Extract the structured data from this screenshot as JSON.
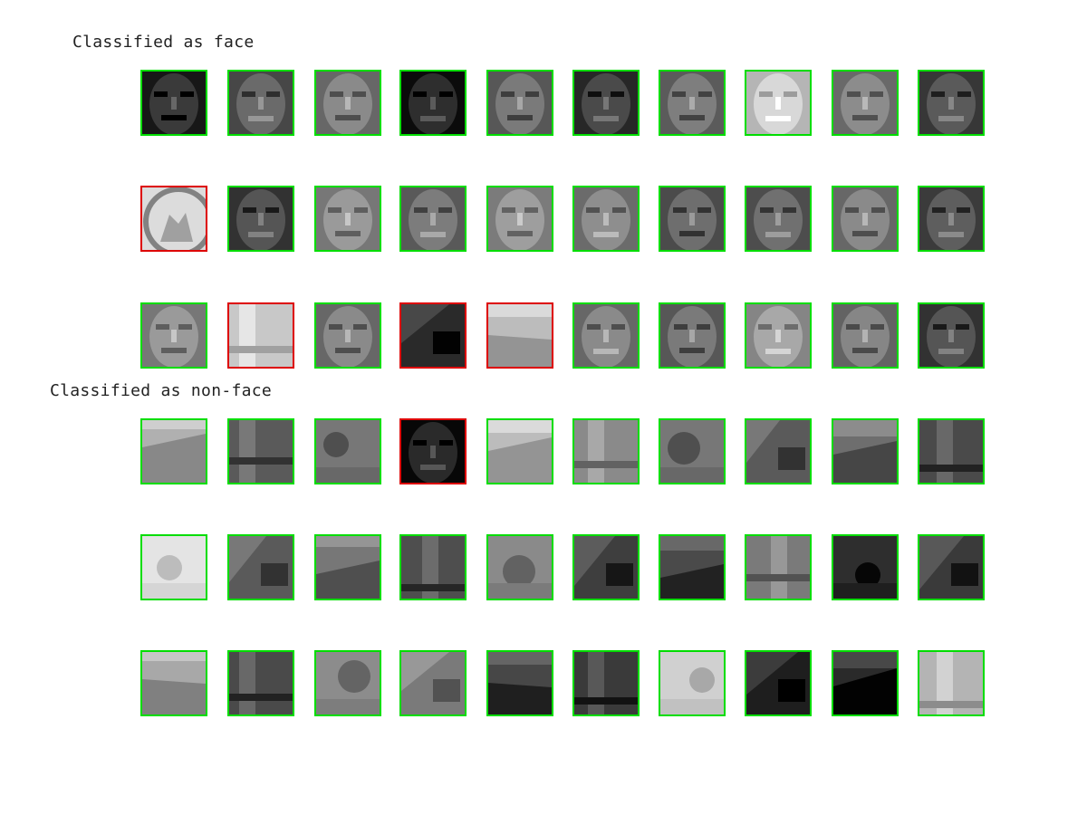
{
  "sections": {
    "face": {
      "title": "Classified as face",
      "rows": [
        [
          {
            "content": "face",
            "correct": true,
            "tone": "#3a3a3a"
          },
          {
            "content": "face",
            "correct": true,
            "tone": "#6a6a6a"
          },
          {
            "content": "face",
            "correct": true,
            "tone": "#8a8a8a"
          },
          {
            "content": "face",
            "correct": true,
            "tone": "#2e2e2e"
          },
          {
            "content": "face",
            "correct": true,
            "tone": "#7a7a7a"
          },
          {
            "content": "face",
            "correct": true,
            "tone": "#4a4a4a"
          },
          {
            "content": "face",
            "correct": true,
            "tone": "#7e7e7e"
          },
          {
            "content": "face",
            "correct": true,
            "tone": "#d8d8d8"
          },
          {
            "content": "face",
            "correct": true,
            "tone": "#8c8c8c"
          },
          {
            "content": "face",
            "correct": true,
            "tone": "#5a5a5a"
          }
        ],
        [
          {
            "content": "emblem",
            "correct": false,
            "tone": "#dcdcdc"
          },
          {
            "content": "face",
            "correct": true,
            "tone": "#555555"
          },
          {
            "content": "face",
            "correct": true,
            "tone": "#9a9a9a"
          },
          {
            "content": "face",
            "correct": true,
            "tone": "#7c7c7c"
          },
          {
            "content": "face",
            "correct": true,
            "tone": "#9e9e9e"
          },
          {
            "content": "face",
            "correct": true,
            "tone": "#8e8e8e"
          },
          {
            "content": "face",
            "correct": true,
            "tone": "#6e6e6e"
          },
          {
            "content": "face",
            "correct": true,
            "tone": "#707070"
          },
          {
            "content": "face",
            "correct": true,
            "tone": "#8a8a8a"
          },
          {
            "content": "face",
            "correct": true,
            "tone": "#5e5e5e"
          }
        ],
        [
          {
            "content": "face",
            "correct": true,
            "tone": "#9a9a9a"
          },
          {
            "content": "scene",
            "correct": false,
            "tone": "#c8c8c8"
          },
          {
            "content": "face",
            "correct": true,
            "tone": "#8a8a8a"
          },
          {
            "content": "scene",
            "correct": false,
            "tone": "#2a2a2a"
          },
          {
            "content": "scene",
            "correct": false,
            "tone": "#bcbcbc"
          },
          {
            "content": "face",
            "correct": true,
            "tone": "#8a8a8a"
          },
          {
            "content": "face",
            "correct": true,
            "tone": "#7a7a7a"
          },
          {
            "content": "face",
            "correct": true,
            "tone": "#a8a8a8"
          },
          {
            "content": "face",
            "correct": true,
            "tone": "#868686"
          },
          {
            "content": "face",
            "correct": true,
            "tone": "#555555"
          }
        ]
      ]
    },
    "nonface": {
      "title": "Classified as non-face",
      "rows": [
        [
          {
            "content": "scene",
            "correct": true,
            "tone": "#b0b0b0"
          },
          {
            "content": "scene",
            "correct": true,
            "tone": "#5a5a5a"
          },
          {
            "content": "scene",
            "correct": true,
            "tone": "#777777"
          },
          {
            "content": "face",
            "correct": false,
            "tone": "#2a2a2a"
          },
          {
            "content": "scene",
            "correct": true,
            "tone": "#bcbcbc"
          },
          {
            "content": "scene",
            "correct": true,
            "tone": "#8a8a8a"
          },
          {
            "content": "scene",
            "correct": true,
            "tone": "#777777"
          },
          {
            "content": "scene",
            "correct": true,
            "tone": "#5a5a5a"
          },
          {
            "content": "scene",
            "correct": true,
            "tone": "#6e6e6e"
          },
          {
            "content": "scene",
            "correct": true,
            "tone": "#4a4a4a"
          }
        ],
        [
          {
            "content": "scene",
            "correct": true,
            "tone": "#e4e4e4"
          },
          {
            "content": "scene",
            "correct": true,
            "tone": "#5a5a5a"
          },
          {
            "content": "scene",
            "correct": true,
            "tone": "#777777"
          },
          {
            "content": "scene",
            "correct": true,
            "tone": "#4e4e4e"
          },
          {
            "content": "scene",
            "correct": true,
            "tone": "#8a8a8a"
          },
          {
            "content": "scene",
            "correct": true,
            "tone": "#3e3e3e"
          },
          {
            "content": "scene",
            "correct": true,
            "tone": "#4a4a4a"
          },
          {
            "content": "scene",
            "correct": true,
            "tone": "#7a7a7a"
          },
          {
            "content": "scene",
            "correct": true,
            "tone": "#2e2e2e"
          },
          {
            "content": "scene",
            "correct": true,
            "tone": "#3a3a3a"
          }
        ],
        [
          {
            "content": "scene",
            "correct": true,
            "tone": "#a8a8a8"
          },
          {
            "content": "scene",
            "correct": true,
            "tone": "#4a4a4a"
          },
          {
            "content": "scene",
            "correct": true,
            "tone": "#8c8c8c"
          },
          {
            "content": "scene",
            "correct": true,
            "tone": "#7a7a7a"
          },
          {
            "content": "scene",
            "correct": true,
            "tone": "#474747"
          },
          {
            "content": "scene",
            "correct": true,
            "tone": "#3a3a3a"
          },
          {
            "content": "scene",
            "correct": true,
            "tone": "#d0d0d0"
          },
          {
            "content": "scene",
            "correct": true,
            "tone": "#1e1e1e"
          },
          {
            "content": "scene",
            "correct": true,
            "tone": "#2a2a2a"
          },
          {
            "content": "scene",
            "correct": true,
            "tone": "#b4b4b4"
          }
        ]
      ]
    }
  },
  "colors": {
    "correct_border": "#00dd00",
    "incorrect_border": "#dd0000"
  }
}
